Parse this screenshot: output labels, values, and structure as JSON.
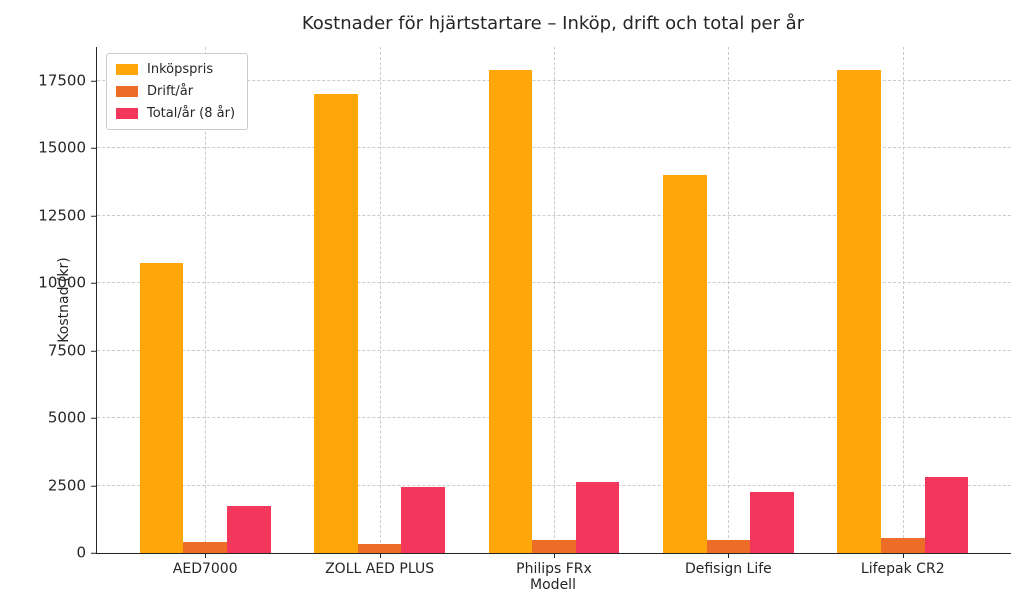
{
  "figure": {
    "title": "Kostnader för hjärtstartare – Inköp, drift och total per år"
  },
  "chart_data": {
    "type": "bar",
    "title": "Kostnader för hjärtstartare – Inköp, drift och total per år",
    "xlabel": "Modell",
    "ylabel": "Kostnad (kr)",
    "categories": [
      "AED7000",
      "ZOLL AED PLUS",
      "Philips FRx",
      "Defisign Life",
      "Lifepak CR2"
    ],
    "series": [
      {
        "name": "Inköpspris",
        "color": "#FFA60A",
        "values": [
          10750,
          17000,
          17900,
          14000,
          17900
        ]
      },
      {
        "name": "Drift/år",
        "color": "#ED6C28",
        "values": [
          400,
          350,
          500,
          500,
          550
        ]
      },
      {
        "name": "Total/år (8 år)",
        "color": "#F3365B",
        "values": [
          1750,
          2450,
          2650,
          2250,
          2800
        ]
      }
    ],
    "ylim": [
      0,
      18750
    ],
    "yticks": [
      0,
      2500,
      5000,
      7500,
      10000,
      12500,
      15000,
      17500
    ],
    "grid": "dashed, both axes",
    "legend_position": "upper left",
    "spines": "left and bottom only"
  }
}
